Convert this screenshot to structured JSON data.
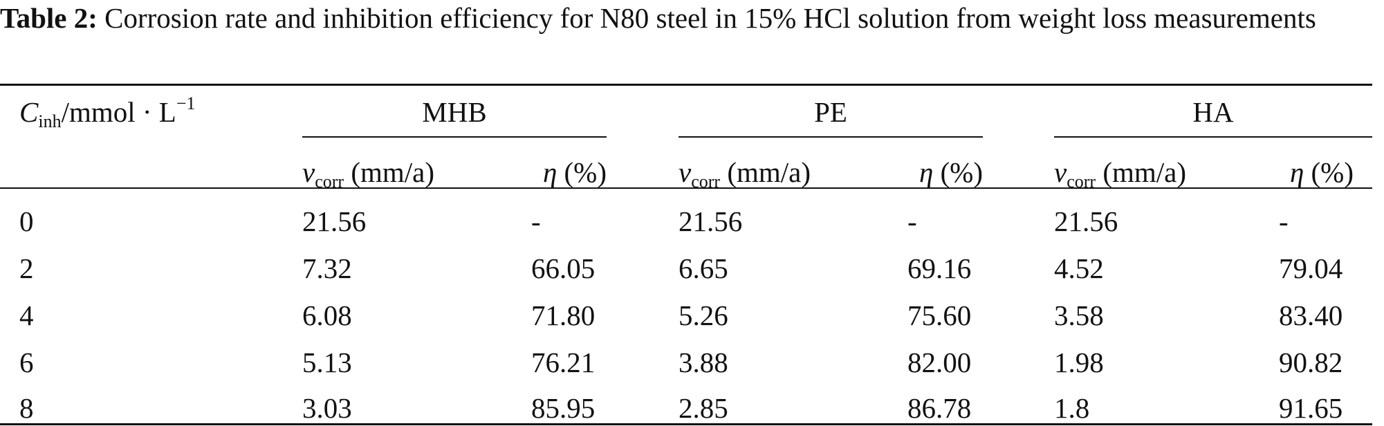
{
  "caption": {
    "label": "Table 2:",
    "text": "Corrosion rate and inhibition efficiency for N80 steel in 15% HCl solution from weight loss measurements"
  },
  "header": {
    "row_label": {
      "symbol": "C",
      "sub": "inh",
      "unit": "/mmol · L",
      "sup": "−1"
    },
    "groups": [
      "MHB",
      "PE",
      "HA"
    ],
    "sub_cols": [
      {
        "symbol": "v",
        "sub": "corr",
        "unit": " (mm/a)"
      },
      {
        "symbol": "η",
        "unit": " (%)"
      }
    ]
  },
  "rows": [
    {
      "c": "0",
      "v": [
        [
          "21.56",
          "-"
        ],
        [
          "21.56",
          "-"
        ],
        [
          "21.56",
          "-"
        ]
      ]
    },
    {
      "c": "2",
      "v": [
        [
          "7.32",
          "66.05"
        ],
        [
          "6.65",
          "69.16"
        ],
        [
          "4.52",
          "79.04"
        ]
      ]
    },
    {
      "c": "4",
      "v": [
        [
          "6.08",
          "71.80"
        ],
        [
          "5.26",
          "75.60"
        ],
        [
          "3.58",
          "83.40"
        ]
      ]
    },
    {
      "c": "6",
      "v": [
        [
          "5.13",
          "76.21"
        ],
        [
          "3.88",
          "82.00"
        ],
        [
          "1.98",
          "90.82"
        ]
      ]
    },
    {
      "c": "8",
      "v": [
        [
          "3.03",
          "85.95"
        ],
        [
          "2.85",
          "86.78"
        ],
        [
          "1.8",
          "91.65"
        ]
      ]
    }
  ]
}
